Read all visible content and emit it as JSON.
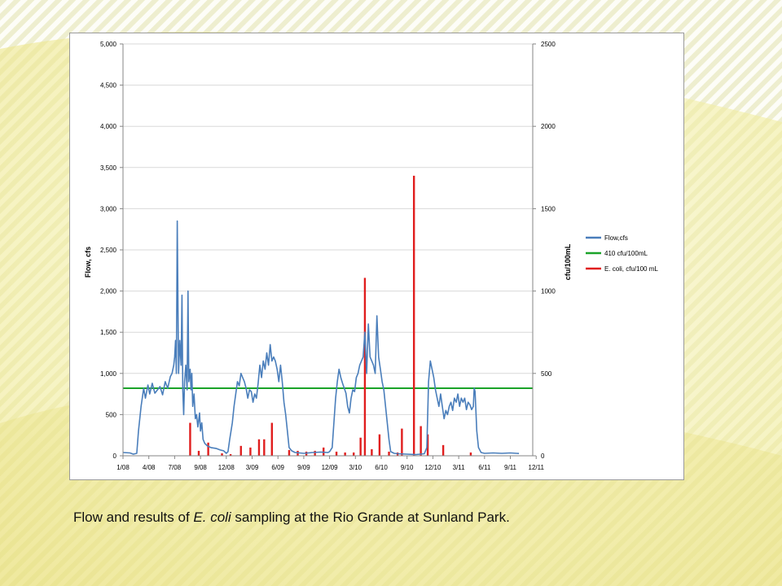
{
  "caption": {
    "prefix": "Flow and results of ",
    "italic": "E. coli",
    "suffix": " sampling at the Rio Grande at Sunland Park."
  },
  "colors": {
    "flow": "#4a7ebb",
    "threshold": "#1aa329",
    "ecoli": "#e01e1e",
    "grid": "#d9d9d9",
    "axis": "#868686"
  },
  "chart_data": {
    "type": "line",
    "ylabel": "Flow, cfs",
    "y2label": "cfu/100mL",
    "ylim": [
      0,
      5000
    ],
    "y2lim": [
      0,
      2500
    ],
    "xlim": [
      0,
      47.6
    ],
    "grid": "horizontal",
    "legend_position": "right",
    "x_tick_labels": [
      "1/08",
      "4/08",
      "7/08",
      "9/08",
      "12/08",
      "3/09",
      "6/09",
      "9/09",
      "12/09",
      "3/10",
      "6/10",
      "9/10",
      "12/10",
      "3/11",
      "6/11",
      "9/11",
      "12/11"
    ],
    "y_tick_labels": [
      "0",
      "500",
      "1,000",
      "1,500",
      "2,000",
      "2,500",
      "3,000",
      "3,500",
      "4,000",
      "4,500",
      "5,000"
    ],
    "y2_tick_labels": [
      "0",
      "500",
      "1000",
      "1500",
      "2000",
      "2500"
    ],
    "series": [
      {
        "name": "Flow,cfs",
        "axis": "left",
        "points": [
          [
            0,
            40
          ],
          [
            0.8,
            35
          ],
          [
            1.2,
            20
          ],
          [
            1.6,
            30
          ],
          [
            1.8,
            300
          ],
          [
            2.1,
            600
          ],
          [
            2.4,
            820
          ],
          [
            2.6,
            700
          ],
          [
            2.9,
            860
          ],
          [
            3.1,
            750
          ],
          [
            3.4,
            880
          ],
          [
            3.7,
            760
          ],
          [
            4.0,
            800
          ],
          [
            4.3,
            840
          ],
          [
            4.6,
            740
          ],
          [
            4.9,
            900
          ],
          [
            5.2,
            820
          ],
          [
            5.5,
            960
          ],
          [
            5.7,
            1000
          ],
          [
            5.9,
            1100
          ],
          [
            6.0,
            1200
          ],
          [
            6.1,
            1400
          ],
          [
            6.2,
            1000
          ],
          [
            6.3,
            2850
          ],
          [
            6.45,
            1000
          ],
          [
            6.6,
            1400
          ],
          [
            6.75,
            1100
          ],
          [
            6.85,
            1950
          ],
          [
            6.95,
            800
          ],
          [
            7.05,
            500
          ],
          [
            7.15,
            900
          ],
          [
            7.3,
            1100
          ],
          [
            7.45,
            800
          ],
          [
            7.55,
            2000
          ],
          [
            7.65,
            900
          ],
          [
            7.8,
            1050
          ],
          [
            7.9,
            800
          ],
          [
            8.0,
            1000
          ],
          [
            8.1,
            600
          ],
          [
            8.25,
            750
          ],
          [
            8.4,
            450
          ],
          [
            8.55,
            500
          ],
          [
            8.7,
            350
          ],
          [
            8.9,
            520
          ],
          [
            9.0,
            300
          ],
          [
            9.15,
            400
          ],
          [
            9.3,
            200
          ],
          [
            9.5,
            150
          ],
          [
            9.8,
            120
          ],
          [
            10.2,
            100
          ],
          [
            10.8,
            90
          ],
          [
            11.3,
            70
          ],
          [
            11.7,
            60
          ],
          [
            11.9,
            40
          ],
          [
            12.0,
            30
          ],
          [
            12.2,
            50
          ],
          [
            12.4,
            200
          ],
          [
            12.7,
            400
          ],
          [
            12.9,
            600
          ],
          [
            13.1,
            750
          ],
          [
            13.3,
            900
          ],
          [
            13.5,
            850
          ],
          [
            13.7,
            1000
          ],
          [
            13.9,
            950
          ],
          [
            14.1,
            900
          ],
          [
            14.3,
            820
          ],
          [
            14.5,
            700
          ],
          [
            14.7,
            800
          ],
          [
            14.9,
            780
          ],
          [
            15.1,
            650
          ],
          [
            15.3,
            750
          ],
          [
            15.5,
            700
          ],
          [
            15.7,
            880
          ],
          [
            15.9,
            1100
          ],
          [
            16.1,
            950
          ],
          [
            16.3,
            1150
          ],
          [
            16.5,
            1050
          ],
          [
            16.7,
            1250
          ],
          [
            16.9,
            1100
          ],
          [
            17.1,
            1350
          ],
          [
            17.3,
            1150
          ],
          [
            17.5,
            1200
          ],
          [
            17.7,
            1150
          ],
          [
            17.9,
            1050
          ],
          [
            18.1,
            900
          ],
          [
            18.3,
            1100
          ],
          [
            18.5,
            900
          ],
          [
            18.7,
            650
          ],
          [
            18.9,
            500
          ],
          [
            19.1,
            300
          ],
          [
            19.3,
            100
          ],
          [
            19.6,
            60
          ],
          [
            20,
            40
          ],
          [
            21,
            30
          ],
          [
            22,
            40
          ],
          [
            23,
            45
          ],
          [
            23.8,
            40
          ],
          [
            24,
            50
          ],
          [
            24.3,
            100
          ],
          [
            24.5,
            400
          ],
          [
            24.7,
            700
          ],
          [
            24.9,
            900
          ],
          [
            25.1,
            1050
          ],
          [
            25.3,
            950
          ],
          [
            25.5,
            880
          ],
          [
            25.7,
            820
          ],
          [
            25.9,
            760
          ],
          [
            26.1,
            600
          ],
          [
            26.3,
            520
          ],
          [
            26.5,
            700
          ],
          [
            26.7,
            800
          ],
          [
            26.9,
            780
          ],
          [
            27.1,
            950
          ],
          [
            27.3,
            1000
          ],
          [
            27.5,
            1100
          ],
          [
            27.7,
            1150
          ],
          [
            27.9,
            1200
          ],
          [
            28.1,
            1500
          ],
          [
            28.3,
            1000
          ],
          [
            28.5,
            1600
          ],
          [
            28.7,
            1200
          ],
          [
            28.9,
            1150
          ],
          [
            29.1,
            1100
          ],
          [
            29.3,
            1000
          ],
          [
            29.5,
            1700
          ],
          [
            29.7,
            1200
          ],
          [
            29.9,
            1050
          ],
          [
            30.1,
            900
          ],
          [
            30.3,
            800
          ],
          [
            30.5,
            600
          ],
          [
            30.7,
            400
          ],
          [
            30.9,
            200
          ],
          [
            31.1,
            50
          ],
          [
            31.5,
            30
          ],
          [
            32,
            25
          ],
          [
            33,
            20
          ],
          [
            34,
            15
          ],
          [
            35,
            25
          ],
          [
            35.3,
            100
          ],
          [
            35.5,
            900
          ],
          [
            35.7,
            1150
          ],
          [
            35.9,
            1050
          ],
          [
            36.1,
            950
          ],
          [
            36.3,
            800
          ],
          [
            36.5,
            700
          ],
          [
            36.7,
            600
          ],
          [
            36.9,
            750
          ],
          [
            37.1,
            600
          ],
          [
            37.3,
            450
          ],
          [
            37.5,
            550
          ],
          [
            37.7,
            500
          ],
          [
            37.9,
            600
          ],
          [
            38.1,
            650
          ],
          [
            38.3,
            550
          ],
          [
            38.5,
            700
          ],
          [
            38.7,
            650
          ],
          [
            38.9,
            750
          ],
          [
            39.1,
            600
          ],
          [
            39.3,
            700
          ],
          [
            39.5,
            650
          ],
          [
            39.7,
            700
          ],
          [
            39.9,
            560
          ],
          [
            40.1,
            650
          ],
          [
            40.3,
            620
          ],
          [
            40.5,
            560
          ],
          [
            40.7,
            600
          ],
          [
            40.8,
            820
          ],
          [
            40.9,
            780
          ],
          [
            41.1,
            300
          ],
          [
            41.3,
            100
          ],
          [
            41.6,
            40
          ],
          [
            42,
            30
          ],
          [
            43,
            35
          ],
          [
            44,
            30
          ],
          [
            45,
            35
          ],
          [
            46,
            28
          ]
        ]
      },
      {
        "name": "410 cfu/100mL",
        "axis": "right",
        "constant": 410
      },
      {
        "name": "E. coli, cfu/100 mL",
        "axis": "right",
        "bars": [
          [
            7.8,
            200
          ],
          [
            8.8,
            30
          ],
          [
            9.9,
            80
          ],
          [
            11.5,
            15
          ],
          [
            12.5,
            10
          ],
          [
            13.7,
            60
          ],
          [
            14.8,
            50
          ],
          [
            15.8,
            100
          ],
          [
            16.4,
            100
          ],
          [
            17.3,
            200
          ],
          [
            19.3,
            35
          ],
          [
            20.3,
            30
          ],
          [
            21.3,
            25
          ],
          [
            22.3,
            30
          ],
          [
            23.3,
            50
          ],
          [
            24.8,
            25
          ],
          [
            25.8,
            20
          ],
          [
            26.8,
            20
          ],
          [
            27.6,
            110
          ],
          [
            28.1,
            1080
          ],
          [
            28.9,
            40
          ],
          [
            29.8,
            130
          ],
          [
            30.9,
            25
          ],
          [
            31.9,
            20
          ],
          [
            32.4,
            165
          ],
          [
            33.8,
            1700
          ],
          [
            34.6,
            180
          ],
          [
            35.4,
            130
          ],
          [
            37.2,
            65
          ],
          [
            40.4,
            20
          ]
        ]
      }
    ]
  }
}
